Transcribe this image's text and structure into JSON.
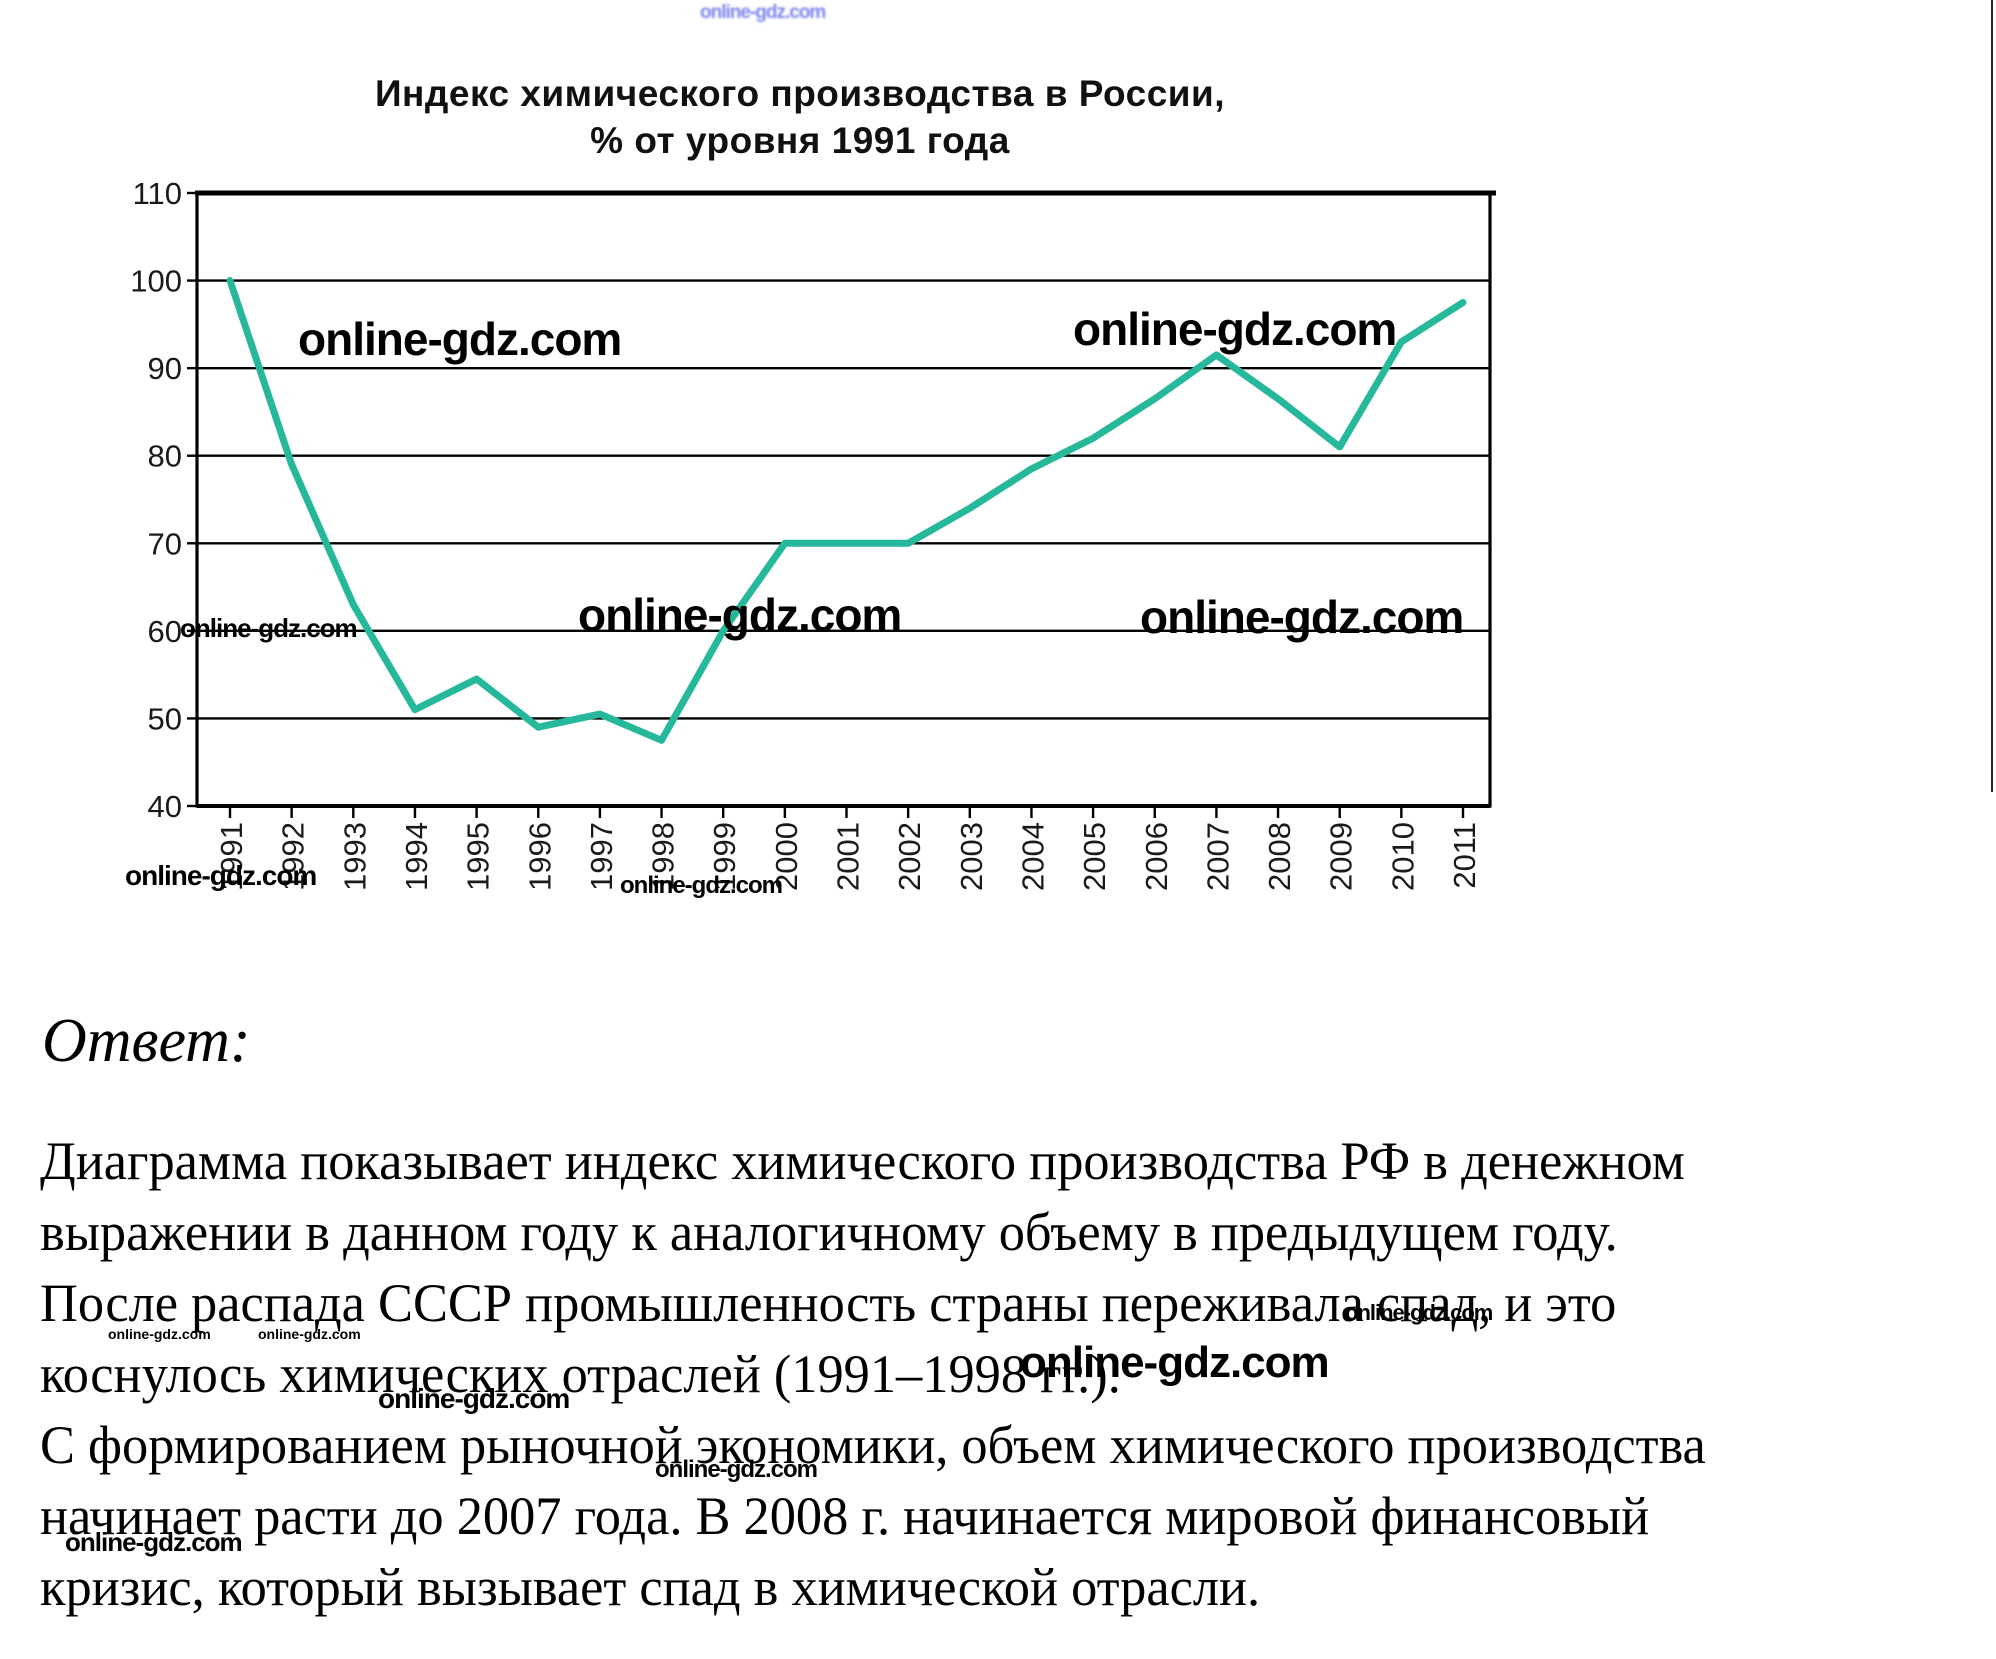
{
  "watermark": {
    "text": "online-gdz.com",
    "black": "#000000",
    "blue": "#7b86ee"
  },
  "chart": {
    "title_line1": "Индекс химического производства в России,",
    "title_line2": "% от уровня 1991 года"
  },
  "chart_data": {
    "type": "line",
    "title": "Индекс химического производства в России, % от уровня 1991 года",
    "x": [
      1991,
      1992,
      1993,
      1994,
      1995,
      1996,
      1997,
      1998,
      1999,
      2000,
      2001,
      2002,
      2003,
      2004,
      2005,
      2006,
      2007,
      2008,
      2009,
      2010,
      2011
    ],
    "values": [
      100,
      79,
      63,
      51,
      54.5,
      49,
      50.5,
      47.5,
      60,
      70,
      70,
      70,
      74,
      78.5,
      82,
      86.5,
      91.5,
      86.5,
      81,
      93,
      97.5
    ],
    "ylim": [
      40,
      110
    ],
    "ytick_step": 10,
    "grid": "horizontal",
    "legend": "none",
    "line_color": "#26B89B",
    "axis_color": "#000000"
  },
  "answer": {
    "heading": "Ответ:",
    "lines": [
      "Диаграмма показывает индекс химического производства РФ в денежном",
      "выражении в данном году к аналогичному объему в предыдущем году.",
      "После распада СССР промышленность страны переживала спад, и это",
      "коснулось химических отраслей (1991–1998 гг.).",
      "С формированием рыночной экономики, объем химического производства",
      "начинает расти до 2007 года. В 2008 г. начинается мировой финансовый",
      "кризис, который вызывает спад в химической отрасли."
    ]
  }
}
